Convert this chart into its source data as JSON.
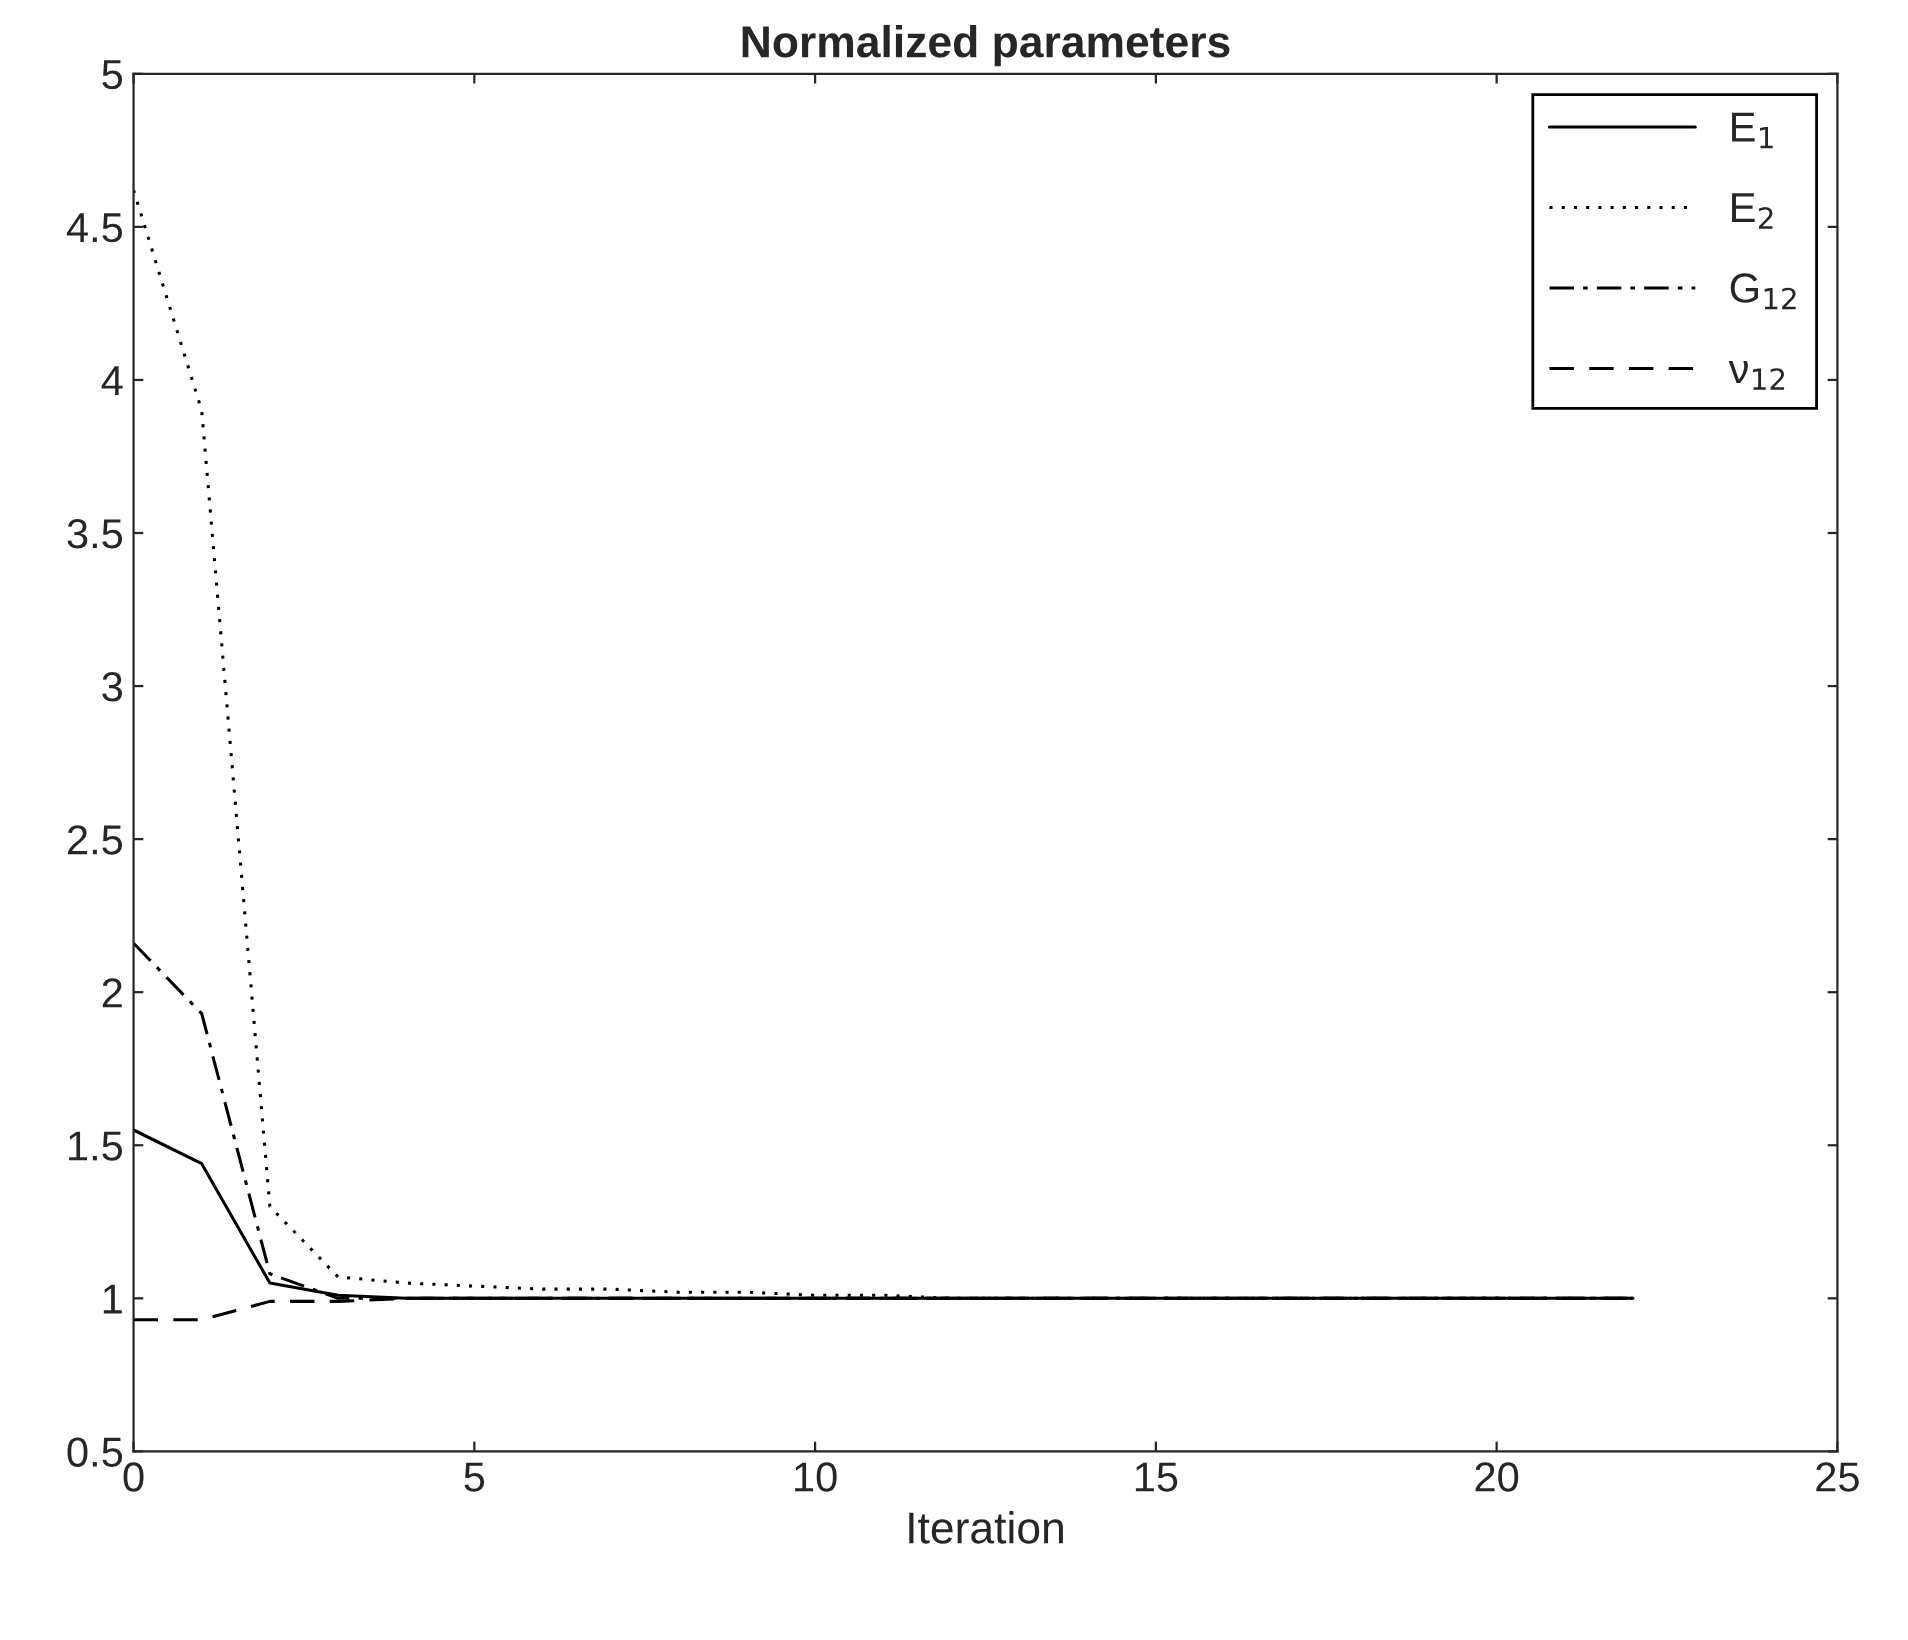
{
  "chart_data": {
    "type": "line",
    "title": "Normalized parameters",
    "xlabel": "Iteration",
    "x": [
      0,
      1,
      2,
      3,
      4,
      5,
      6,
      7,
      8,
      9,
      10,
      11,
      12,
      13,
      14,
      15,
      16,
      17,
      18,
      19,
      20,
      21,
      22
    ],
    "series": [
      {
        "name": "E$_{1}$",
        "color": "#000000",
        "line_style": "solid",
        "values": [
          1.55,
          1.44,
          1.05,
          1.01,
          1.0,
          1.0,
          1.0,
          1.0,
          1.0,
          1.0,
          1.0,
          1.0,
          1.0,
          1.0,
          1.0,
          1.0,
          1.0,
          1.0,
          1.0,
          1.0,
          1.0,
          1.0,
          1.0
        ]
      },
      {
        "name": "E$_{2}$",
        "color": "#000000",
        "line_style": "dotted",
        "values": [
          4.62,
          3.9,
          1.3,
          1.07,
          1.05,
          1.04,
          1.03,
          1.03,
          1.02,
          1.02,
          1.01,
          1.01,
          1.0,
          1.0,
          1.0,
          1.0,
          1.0,
          1.0,
          1.0,
          1.0,
          1.0,
          1.0,
          1.0
        ]
      },
      {
        "name": "G$_{12}$",
        "color": "#000000",
        "line_style": "dashdot",
        "values": [
          2.16,
          1.93,
          1.08,
          1.0,
          1.0,
          1.0,
          1.0,
          1.0,
          1.0,
          1.0,
          1.0,
          1.0,
          1.0,
          1.0,
          1.0,
          1.0,
          1.0,
          1.0,
          1.0,
          1.0,
          1.0,
          1.0,
          1.0
        ]
      },
      {
        "name": "ν$_{12}$",
        "color": "#000000",
        "line_style": "dashed",
        "values": [
          0.93,
          0.93,
          0.99,
          0.99,
          1.0,
          1.0,
          1.0,
          1.0,
          1.0,
          1.0,
          1.0,
          1.0,
          1.0,
          1.0,
          1.0,
          1.0,
          1.0,
          1.0,
          1.0,
          1.0,
          1.0,
          1.0,
          1.0
        ]
      }
    ],
    "xlim": [
      0,
      25
    ],
    "xticks": [
      0,
      5,
      10,
      15,
      20,
      25
    ],
    "ylim": [
      0.5,
      5
    ],
    "yticks": [
      0.5,
      1,
      1.5,
      2,
      2.5,
      3,
      3.5,
      4,
      4.5,
      5
    ],
    "grid": false,
    "legend": "top right"
  }
}
